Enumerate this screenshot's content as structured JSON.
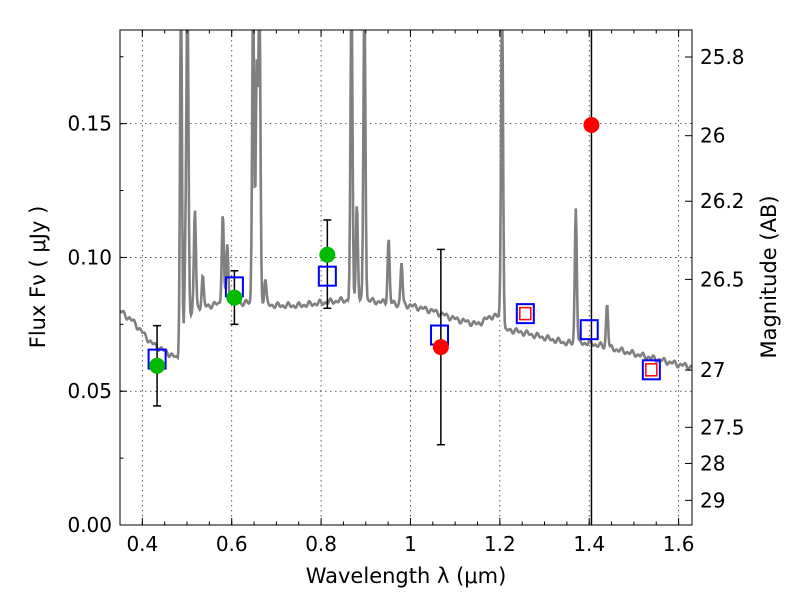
{
  "chart_data": {
    "type": "scatter",
    "title": "",
    "xlabel": "Wavelength  λ (μm)",
    "ylabel": "Flux  Fν  ( μJy )",
    "ylabel_right": "Magnitude (AB)",
    "xlim": [
      0.35,
      1.63
    ],
    "ylim": [
      0.0,
      0.185
    ],
    "grid": true,
    "x_ticks": [
      0.4,
      0.6,
      0.8,
      1.0,
      1.2,
      1.4,
      1.6
    ],
    "x_tick_labels": [
      "0.4",
      "0.6",
      "0.8",
      "1",
      "1.2",
      "1.4",
      "1.6"
    ],
    "y_ticks": [
      0.0,
      0.05,
      0.1,
      0.15
    ],
    "y_tick_labels": [
      "0.00",
      "0.05",
      "0.10",
      "0.15"
    ],
    "right_ticks": [
      {
        "label": "25.8",
        "flux": 0.1749
      },
      {
        "label": "26",
        "flux": 0.1455
      },
      {
        "label": "26.2",
        "flux": 0.121
      },
      {
        "label": "26.5",
        "flux": 0.0918
      },
      {
        "label": "27",
        "flux": 0.0579
      },
      {
        "label": "27.5",
        "flux": 0.0365
      },
      {
        "label": "28",
        "flux": 0.023
      },
      {
        "label": "29",
        "flux": 0.0092
      }
    ],
    "vline_x": 1.405,
    "series": [
      {
        "kind": "sed_model",
        "color": "#808080",
        "x": [
          0.35,
          0.38,
          0.4,
          0.42,
          0.44,
          0.46,
          0.48,
          0.49,
          0.495,
          0.5,
          0.505,
          0.51,
          0.52,
          0.55,
          0.58,
          0.6,
          0.62,
          0.65,
          0.7,
          0.75,
          0.8,
          0.85,
          0.9,
          0.95,
          1.0,
          1.05,
          1.1,
          1.15,
          1.18,
          1.19,
          1.2,
          1.21,
          1.22,
          1.25,
          1.3,
          1.35,
          1.4,
          1.45,
          1.5,
          1.55,
          1.6,
          1.63
        ],
        "y": [
          0.08,
          0.076,
          0.072,
          0.068,
          0.066,
          0.064,
          0.062,
          0.0615,
          0.069,
          0.08,
          0.0795,
          0.079,
          0.081,
          0.082,
          0.083,
          0.084,
          0.083,
          0.083,
          0.082,
          0.082,
          0.083,
          0.084,
          0.084,
          0.083,
          0.082,
          0.08,
          0.077,
          0.075,
          0.078,
          0.078,
          0.078,
          0.072,
          0.073,
          0.072,
          0.07,
          0.068,
          0.068,
          0.066,
          0.064,
          0.062,
          0.06,
          0.059
        ],
        "emission_lines": [
          {
            "x": 0.4865,
            "peak": 0.2
          },
          {
            "x": 0.4963,
            "peak": 0.1
          },
          {
            "x": 0.501,
            "peak": 0.2
          },
          {
            "x": 0.5176,
            "peak": 0.118
          },
          {
            "x": 0.535,
            "peak": 0.093
          },
          {
            "x": 0.58,
            "peak": 0.117
          },
          {
            "x": 0.59,
            "peak": 0.105
          },
          {
            "x": 0.648,
            "peak": 0.2
          },
          {
            "x": 0.656,
            "peak": 0.17
          },
          {
            "x": 0.662,
            "peak": 0.2
          },
          {
            "x": 0.675,
            "peak": 0.092
          },
          {
            "x": 0.868,
            "peak": 0.2
          },
          {
            "x": 0.88,
            "peak": 0.12
          },
          {
            "x": 0.897,
            "peak": 0.2
          },
          {
            "x": 0.951,
            "peak": 0.107
          },
          {
            "x": 0.98,
            "peak": 0.098
          },
          {
            "x": 1.205,
            "peak": 0.2
          },
          {
            "x": 1.37,
            "peak": 0.119
          },
          {
            "x": 1.44,
            "peak": 0.083
          }
        ]
      },
      {
        "kind": "model_photometry",
        "marker": "open-square",
        "color": "#0000ff",
        "x": [
          0.433,
          0.606,
          0.814,
          1.065,
          1.257,
          1.4,
          1.539
        ],
        "y": [
          0.062,
          0.089,
          0.093,
          0.071,
          0.079,
          0.073,
          0.058
        ]
      },
      {
        "kind": "inner_squares",
        "marker": "open-square",
        "color": "#ff0000",
        "x": [
          1.257,
          1.539
        ],
        "y": [
          0.079,
          0.058
        ]
      },
      {
        "kind": "observed_detections",
        "marker": "filled-circle",
        "color": "#00bb00",
        "x": [
          0.433,
          0.606,
          0.814
        ],
        "y": [
          0.0595,
          0.085,
          0.101
        ],
        "yerr_low": [
          0.0445,
          0.075,
          0.081
        ],
        "yerr_high": [
          0.0745,
          0.095,
          0.114
        ]
      },
      {
        "kind": "observed_other",
        "marker": "filled-circle",
        "color": "#ff0000",
        "x": [
          1.068,
          1.405
        ],
        "y": [
          0.0665,
          0.1495
        ],
        "yerr_low": [
          0.03,
          null
        ],
        "yerr_high": [
          0.103,
          null
        ]
      }
    ]
  }
}
